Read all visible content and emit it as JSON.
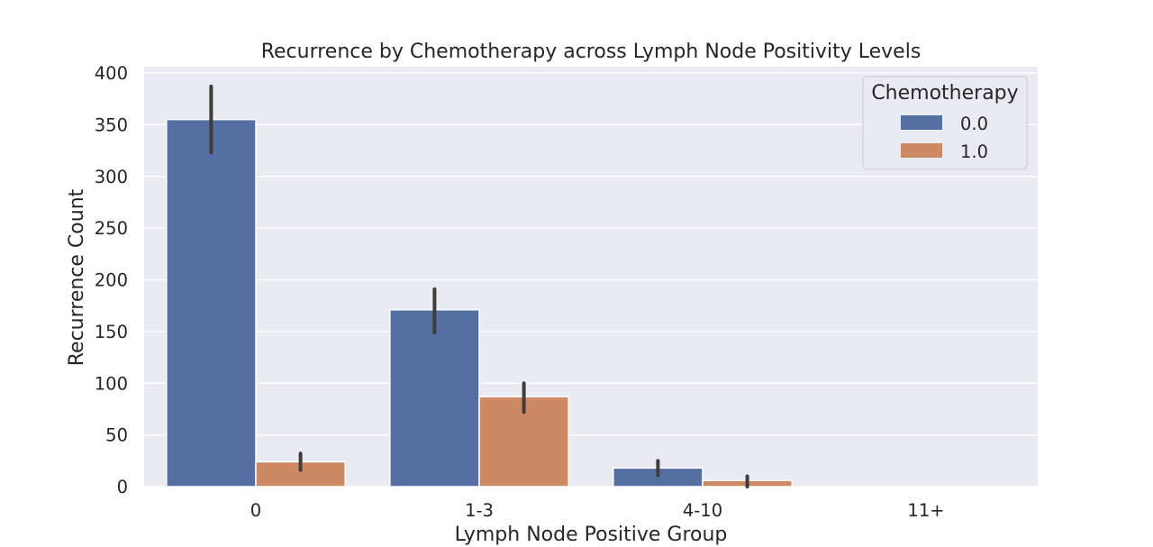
{
  "chart_data": {
    "type": "bar",
    "title": "Recurrence by Chemotherapy across Lymph Node Positivity Levels",
    "xlabel": "Lymph Node Positive Group",
    "ylabel": "Recurrence Count",
    "categories": [
      "0",
      "1-3",
      "4-10",
      "11+"
    ],
    "ylim": [
      0,
      400
    ],
    "yticks": [
      0,
      50,
      100,
      150,
      200,
      250,
      300,
      350,
      400
    ],
    "grid": true,
    "legend": {
      "title": "Chemotherapy",
      "placement": "top-right"
    },
    "series": [
      {
        "name": "0.0",
        "color": "#5470a2",
        "values": [
          355,
          171,
          18,
          null
        ],
        "error": [
          [
            323,
            387
          ],
          [
            149,
            191
          ],
          [
            11,
            25
          ],
          null
        ]
      },
      {
        "name": "1.0",
        "color": "#cc8963",
        "values": [
          24,
          87,
          6,
          null
        ],
        "error": [
          [
            16,
            32
          ],
          [
            72,
            100
          ],
          [
            0,
            10
          ],
          null
        ]
      }
    ],
    "plot_background": "#eaeaf2",
    "grid_color": "#ffffff",
    "errorbar_color": "#3d3d3d"
  }
}
